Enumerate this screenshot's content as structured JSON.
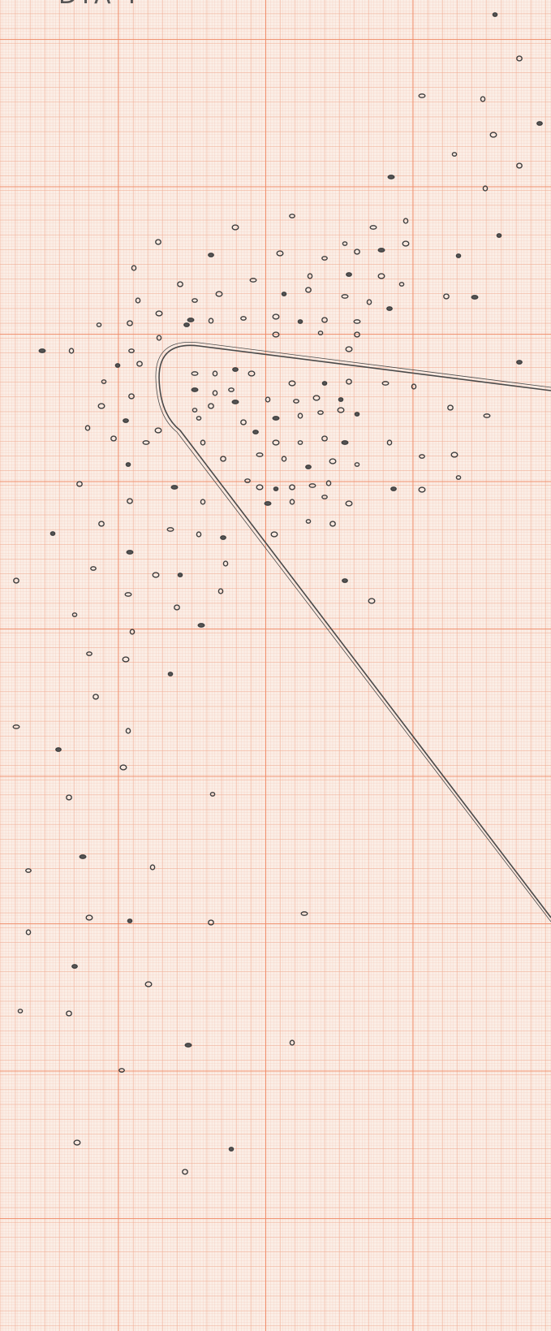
{
  "header": {
    "label": "DIA I"
  }
}
